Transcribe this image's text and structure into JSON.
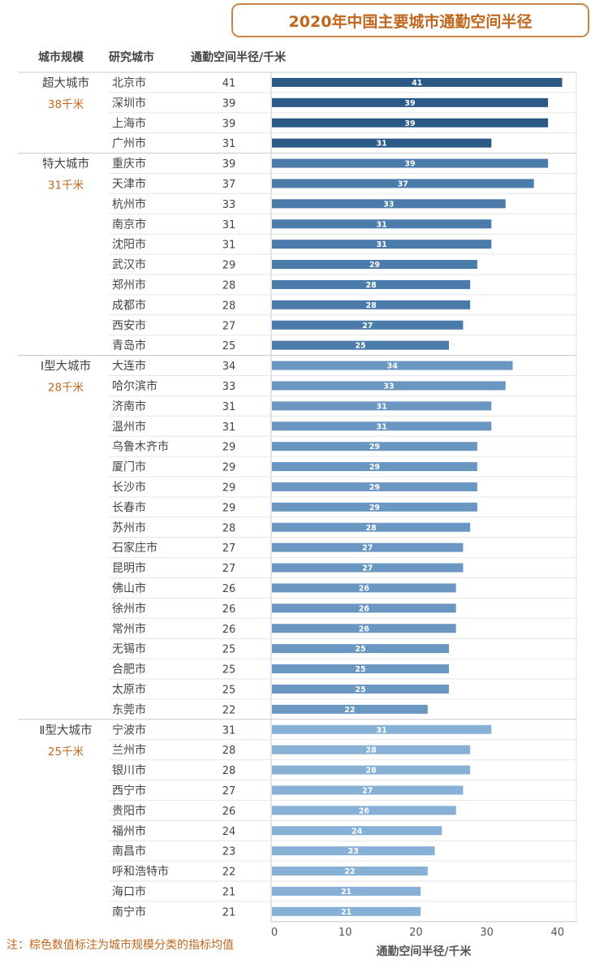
{
  "title": "2020年中国主要城市通勤空间半径",
  "headers": {
    "scale": "城市规模",
    "city": "研究城市",
    "radius": "通勤空间半径/千米"
  },
  "note": "注：棕色数值标注为城市规模分类的指标均值",
  "colors": {
    "accent": "#c0671e",
    "group_bars": [
      "#2b5a87",
      "#4b7bab",
      "#6a97c2",
      "#86b0d6"
    ]
  },
  "chart_data": {
    "type": "bar",
    "orientation": "horizontal",
    "xlabel": "通勤空间半径/千米",
    "xlim": [
      0,
      42
    ],
    "xticks": [
      0,
      10,
      20,
      30,
      40
    ],
    "data_labels": true,
    "groups": [
      {
        "name": "超大城市",
        "mean_label": "38千米",
        "cities": [
          "北京市",
          "深圳市",
          "上海市",
          "广州市"
        ],
        "values": [
          41,
          39,
          39,
          31
        ]
      },
      {
        "name": "特大城市",
        "mean_label": "31千米",
        "cities": [
          "重庆市",
          "天津市",
          "杭州市",
          "南京市",
          "沈阳市",
          "武汉市",
          "郑州市",
          "成都市",
          "西安市",
          "青岛市"
        ],
        "values": [
          39,
          37,
          33,
          31,
          31,
          29,
          28,
          28,
          27,
          25
        ]
      },
      {
        "name": "Ⅰ型大城市",
        "mean_label": "28千米",
        "cities": [
          "大连市",
          "哈尔滨市",
          "济南市",
          "温州市",
          "乌鲁木齐市",
          "厦门市",
          "长沙市",
          "长春市",
          "苏州市",
          "石家庄市",
          "昆明市",
          "佛山市",
          "徐州市",
          "常州市",
          "无锡市",
          "合肥市",
          "太原市",
          "东莞市"
        ],
        "values": [
          34,
          33,
          31,
          31,
          29,
          29,
          29,
          29,
          28,
          27,
          27,
          26,
          26,
          26,
          25,
          25,
          25,
          22
        ]
      },
      {
        "name": "Ⅱ型大城市",
        "mean_label": "25千米",
        "cities": [
          "宁波市",
          "兰州市",
          "银川市",
          "西宁市",
          "贵阳市",
          "福州市",
          "南昌市",
          "呼和浩特市",
          "海口市",
          "南宁市"
        ],
        "values": [
          31,
          28,
          28,
          27,
          26,
          24,
          23,
          22,
          21,
          21
        ]
      }
    ]
  }
}
